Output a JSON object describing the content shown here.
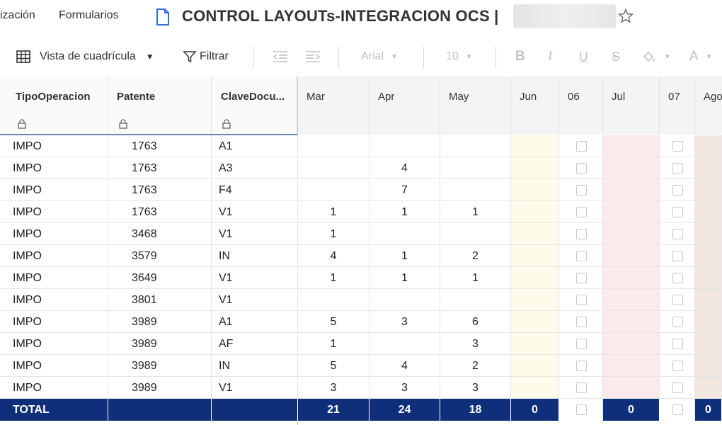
{
  "topbar": {
    "menu_partial": "ización",
    "menu_forms": "Formularios",
    "title": "CONTROL LAYOUTs-INTEGRACION OCS |"
  },
  "toolbar": {
    "grid_view_label": "Vista de cuadrícula",
    "filter_label": "Filtrar",
    "font_name": "Arial",
    "font_size": "10"
  },
  "grid": {
    "columns": {
      "tipo": "TipoOperacion",
      "patente": "Patente",
      "clave": "ClaveDocu...",
      "mar": "Mar",
      "apr": "Apr",
      "may": "May",
      "jun": "Jun",
      "c06": "06",
      "jul": "Jul",
      "c07": "07",
      "ago": "Ago"
    },
    "rows": [
      {
        "tipo": "IMPO",
        "patente": "1763",
        "clave": "A1",
        "mar": "",
        "apr": "",
        "may": ""
      },
      {
        "tipo": "IMPO",
        "patente": "1763",
        "clave": "A3",
        "mar": "",
        "apr": "4",
        "may": ""
      },
      {
        "tipo": "IMPO",
        "patente": "1763",
        "clave": "F4",
        "mar": "",
        "apr": "7",
        "may": ""
      },
      {
        "tipo": "IMPO",
        "patente": "1763",
        "clave": "V1",
        "mar": "1",
        "apr": "1",
        "may": "1"
      },
      {
        "tipo": "IMPO",
        "patente": "3468",
        "clave": "V1",
        "mar": "1",
        "apr": "",
        "may": ""
      },
      {
        "tipo": "IMPO",
        "patente": "3579",
        "clave": "IN",
        "mar": "4",
        "apr": "1",
        "may": "2"
      },
      {
        "tipo": "IMPO",
        "patente": "3649",
        "clave": "V1",
        "mar": "1",
        "apr": "1",
        "may": "1"
      },
      {
        "tipo": "IMPO",
        "patente": "3801",
        "clave": "V1",
        "mar": "",
        "apr": "",
        "may": ""
      },
      {
        "tipo": "IMPO",
        "patente": "3989",
        "clave": "A1",
        "mar": "5",
        "apr": "3",
        "may": "6"
      },
      {
        "tipo": "IMPO",
        "patente": "3989",
        "clave": "AF",
        "mar": "1",
        "apr": "",
        "may": "3"
      },
      {
        "tipo": "IMPO",
        "patente": "3989",
        "clave": "IN",
        "mar": "5",
        "apr": "4",
        "may": "2"
      },
      {
        "tipo": "IMPO",
        "patente": "3989",
        "clave": "V1",
        "mar": "3",
        "apr": "3",
        "may": "3"
      }
    ],
    "total": {
      "label": "TOTAL",
      "mar": "21",
      "apr": "24",
      "may": "18",
      "jun": "0",
      "jul": "0",
      "ago": "0"
    }
  },
  "colors": {
    "total_bg": "#0f2f7a",
    "jun_bg": "#fdfbe9",
    "jul_bg": "#fbeaea",
    "ago_bg": "#f1e7e0"
  }
}
